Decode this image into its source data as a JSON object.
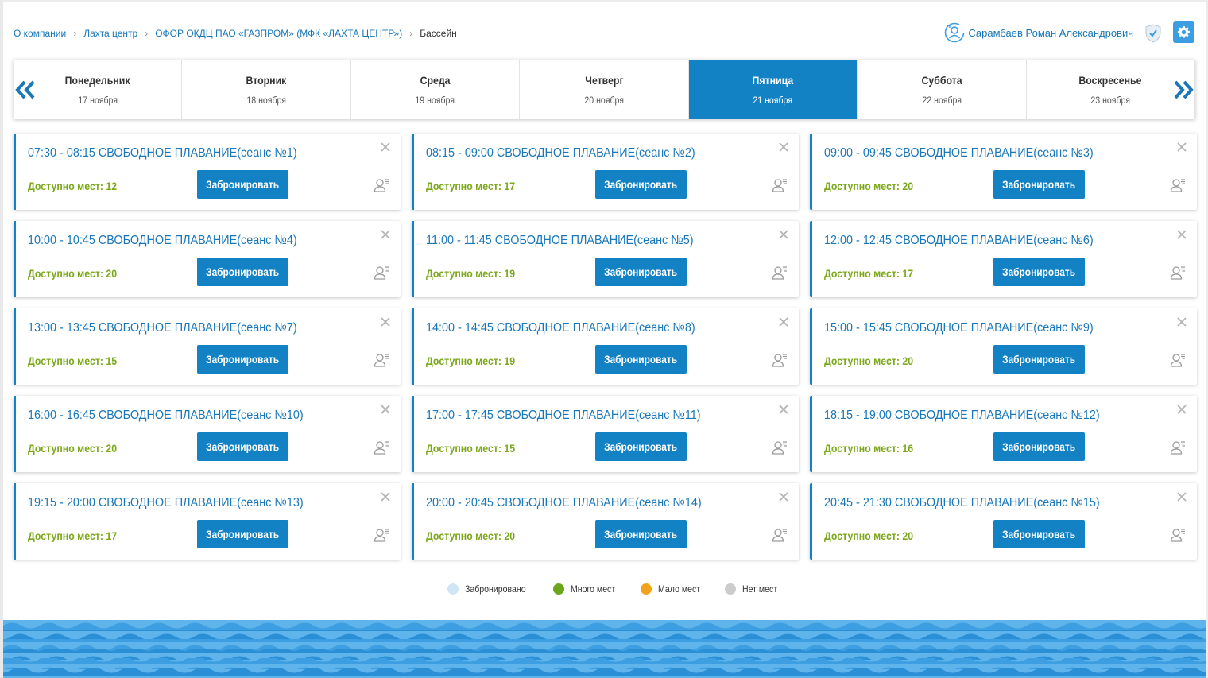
{
  "breadcrumb": {
    "items": [
      "О компании",
      "Лахта центр",
      "ОФОР ОКДЦ ПАО «ГАЗПРОМ» (МФК «ЛАХТА ЦЕНТР»)"
    ],
    "current": "Бассейн"
  },
  "user": {
    "name": "Сарамбаев Роман Александрович"
  },
  "days": [
    {
      "name": "Понедельник",
      "date": "17 ноября"
    },
    {
      "name": "Вторник",
      "date": "18 ноября"
    },
    {
      "name": "Среда",
      "date": "19 ноября"
    },
    {
      "name": "Четверг",
      "date": "20 ноября"
    },
    {
      "name": "Пятница",
      "date": "21 ноября"
    },
    {
      "name": "Суббота",
      "date": "22 ноября"
    },
    {
      "name": "Воскресенье",
      "date": "23 ноября"
    }
  ],
  "active_day_index": 4,
  "book_label": "Забронировать",
  "sessions": [
    {
      "title": "07:30 - 08:15 СВОБОДНОЕ ПЛАВАНИЕ(сеанс №1)",
      "avail": "Доступно мест: 12"
    },
    {
      "title": "08:15 - 09:00 СВОБОДНОЕ ПЛАВАНИЕ(сеанс №2)",
      "avail": "Доступно мест: 17"
    },
    {
      "title": "09:00 - 09:45 СВОБОДНОЕ ПЛАВАНИЕ(сеанс №3)",
      "avail": "Доступно мест: 20"
    },
    {
      "title": "10:00 - 10:45 СВОБОДНОЕ ПЛАВАНИЕ(сеанс №4)",
      "avail": "Доступно мест: 20"
    },
    {
      "title": "11:00 - 11:45 СВОБОДНОЕ ПЛАВАНИЕ(сеанс №5)",
      "avail": "Доступно мест: 19"
    },
    {
      "title": "12:00 - 12:45 СВОБОДНОЕ ПЛАВАНИЕ(сеанс №6)",
      "avail": "Доступно мест: 17"
    },
    {
      "title": "13:00 - 13:45 СВОБОДНОЕ ПЛАВАНИЕ(сеанс №7)",
      "avail": "Доступно мест: 15"
    },
    {
      "title": "14:00 - 14:45 СВОБОДНОЕ ПЛАВАНИЕ(сеанс №8)",
      "avail": "Доступно мест: 19"
    },
    {
      "title": "15:00 - 15:45 СВОБОДНОЕ ПЛАВАНИЕ(сеанс №9)",
      "avail": "Доступно мест: 20"
    },
    {
      "title": "16:00 - 16:45 СВОБОДНОЕ ПЛАВАНИЕ(сеанс №10)",
      "avail": "Доступно мест: 20"
    },
    {
      "title": "17:00 - 17:45 СВОБОДНОЕ ПЛАВАНИЕ(сеанс №11)",
      "avail": "Доступно мест: 15"
    },
    {
      "title": "18:15 - 19:00 СВОБОДНОЕ ПЛАВАНИЕ(сеанс №12)",
      "avail": "Доступно мест: 16"
    },
    {
      "title": "19:15 - 20:00 СВОБОДНОЕ ПЛАВАНИЕ(сеанс №13)",
      "avail": "Доступно мест: 17"
    },
    {
      "title": "20:00 - 20:45 СВОБОДНОЕ ПЛАВАНИЕ(сеанс №14)",
      "avail": "Доступно мест: 20"
    },
    {
      "title": "20:45 - 21:30 СВОБОДНОЕ ПЛАВАНИЕ(сеанс №15)",
      "avail": "Доступно мест: 20"
    }
  ],
  "legend": [
    {
      "label": "Забронировано",
      "color": "#cfe6f7"
    },
    {
      "label": "Много мест",
      "color": "#6ba51c"
    },
    {
      "label": "Мало мест",
      "color": "#f2a31b"
    },
    {
      "label": "Нет мест",
      "color": "#cccccc"
    }
  ],
  "colors": {
    "accent": "#1382c4",
    "available": "#7ca81a",
    "water": "#3a9de0"
  }
}
